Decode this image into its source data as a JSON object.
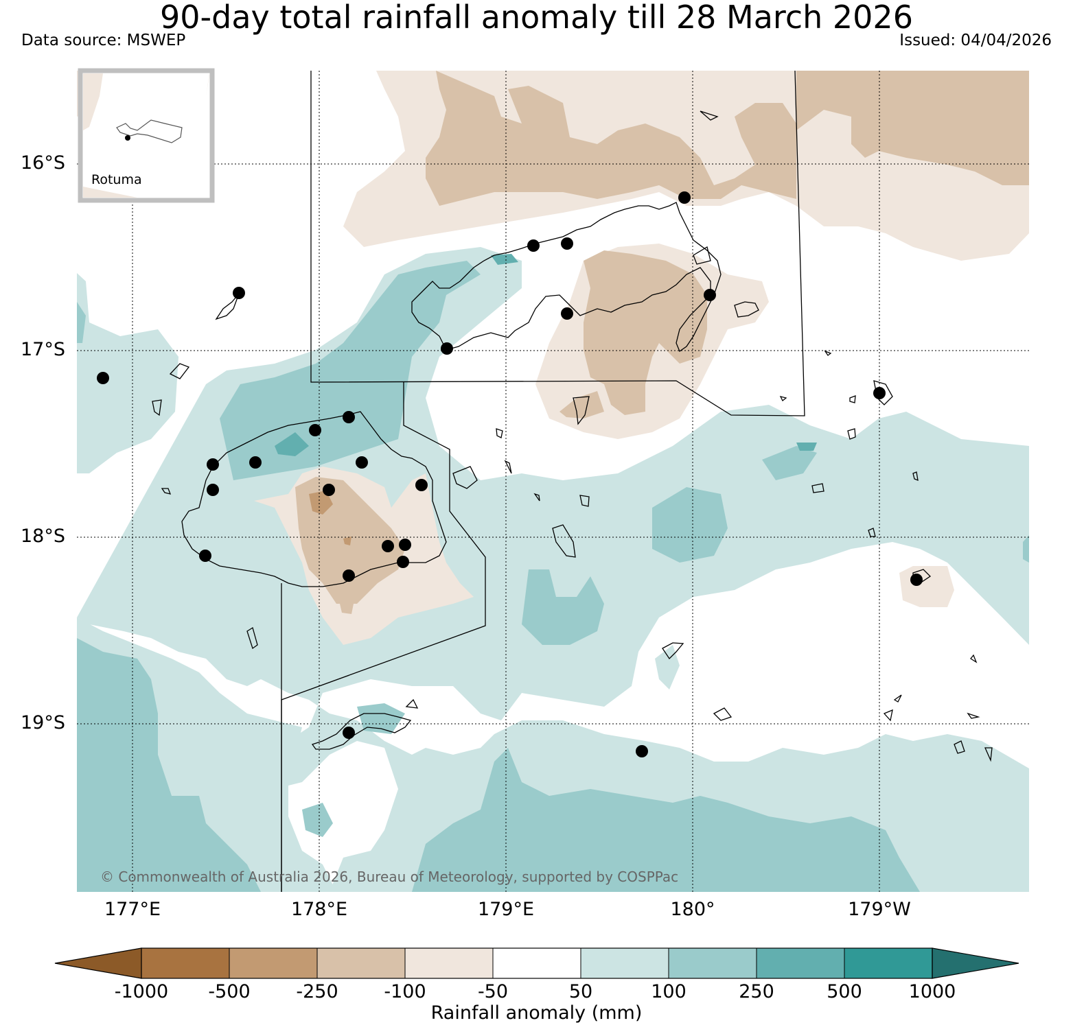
{
  "title": "90-day total rainfall anomaly till 28 March 2026",
  "data_source": "Data source: MSWEP",
  "issued": "Issued: 04/04/2026",
  "copyright": "© Commonwealth of Australia 2026, Bureau of Meteorology, supported by COSPPac",
  "inset": {
    "label": "Rotuma"
  },
  "latitude_labels": [
    "16°S",
    "17°S",
    "18°S",
    "19°S"
  ],
  "longitude_labels": [
    "177°E",
    "178°E",
    "179°E",
    "180°",
    "179°W"
  ],
  "colorbar": {
    "title": "Rainfall anomaly (mm)",
    "ticks": [
      "-1000",
      "-500",
      "-250",
      "-100",
      "-50",
      "50",
      "100",
      "250",
      "500",
      "1000"
    ],
    "colors": [
      "#8c5a28",
      "#a87340",
      "#c29a72",
      "#d8c1a9",
      "#f0e6dd",
      "#ffffff",
      "#cce4e3",
      "#9acbcb",
      "#62afaf",
      "#309996",
      "#24706f"
    ]
  },
  "colors": {
    "dry_1": "#f0e6dd",
    "dry_2": "#d8c1a9",
    "dry_3": "#c29a72",
    "wet_1": "#cce4e3",
    "wet_2": "#9acbcb",
    "wet_3": "#62afaf"
  }
}
